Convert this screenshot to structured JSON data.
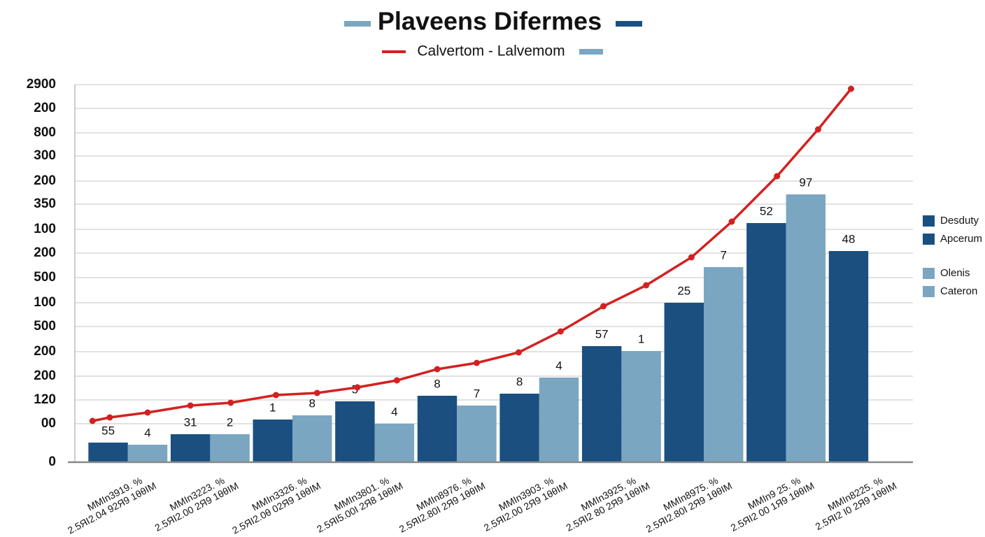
{
  "chart_data": {
    "type": "bar-line",
    "title": "Plaveens Difermes",
    "subtitle": "Calvertom - Lalvemom",
    "categories": [
      "MMIn3919. %",
      "MMIn3223. %",
      "MMIn3326. %",
      "MMIn3801. %",
      "MMIn8976. %",
      "MMIn3903. %",
      "MMIn3925. %",
      "MMIn8975. %",
      "MMIn9 25. %",
      "MMIn8225. %"
    ],
    "category_sublabels": [
      "2.5ЯI2.04 92Я9  1θθIM",
      "2.5ЯI2.00 2Я9  1θθIM",
      "2.5ЯI2.0θ 02Я9  1θθIM",
      "2.5ЯI5.00I 2Я8  1θθIM",
      "2.5ЯI2.80I 2Я9  1θθIM",
      "2.5ЯI2.00 2Я9  1θθIM",
      "2.5ЯI2 80 2Я9  1θθIM",
      "2.5ЯI2.80I 2Я9  1θθIM",
      "2.5ЯI2 00 1Я9  1θθIM",
      "2.5ЯI2 I0 2Я9  1θθIM"
    ],
    "series": [
      {
        "color": "#1a4f80",
        "values": [
          28,
          40,
          61,
          87,
          95,
          98,
          166,
          228,
          342,
          302
        ],
        "bar_labels": [
          "55",
          "31",
          "1",
          "5",
          "8",
          "8",
          "57",
          "25",
          "52",
          "48"
        ]
      },
      {
        "color": "#7aa6c2",
        "values": [
          25,
          40,
          67,
          55,
          81,
          121,
          159,
          279,
          383,
          null
        ],
        "bar_labels": [
          "4",
          "2",
          "8",
          "4",
          "7",
          "4",
          "1",
          "7",
          "97",
          null
        ]
      }
    ],
    "line": {
      "color": "#d42020",
      "x": [
        0.07,
        0.28,
        0.74,
        1.26,
        1.75,
        2.3,
        2.8,
        3.29,
        3.77,
        4.26,
        4.74,
        5.25,
        5.76,
        6.28,
        6.8,
        7.35,
        7.84,
        8.39,
        8.89,
        9.29
      ],
      "values": [
        59,
        64,
        71,
        81,
        85,
        96,
        99,
        107,
        117,
        133,
        142,
        157,
        187,
        223,
        253,
        293,
        344,
        409,
        476,
        534
      ]
    },
    "legend": [
      {
        "name": "Desduty",
        "color": "#1a4f80"
      },
      {
        "name": "Apcerum",
        "color": "#1a4f80"
      },
      {
        "name": "Olenis",
        "color": "#7aa6c2"
      },
      {
        "name": "Cateron",
        "color": "#7aa6c2"
      }
    ],
    "xlim": [
      0,
      10
    ],
    "ylim": [
      0,
      540
    ],
    "yticks": [
      0,
      {
        "value": 55,
        "label": "00"
      },
      {
        "value": 89,
        "label": "120"
      },
      {
        "value": 123,
        "label": "200"
      },
      {
        "value": 158,
        "label": "200"
      },
      {
        "value": 194,
        "label": "500"
      },
      {
        "value": 228,
        "label": "100"
      },
      {
        "value": 264,
        "label": "500"
      },
      {
        "value": 299,
        "label": "200"
      },
      {
        "value": 333,
        "label": "100"
      },
      {
        "value": 369,
        "label": "350"
      },
      {
        "value": 402,
        "label": "200"
      },
      {
        "value": 438,
        "label": "300"
      },
      {
        "value": 471,
        "label": "800"
      },
      {
        "value": 506,
        "label": "200"
      },
      {
        "value": 540,
        "label": "2900"
      }
    ],
    "grid": true
  }
}
